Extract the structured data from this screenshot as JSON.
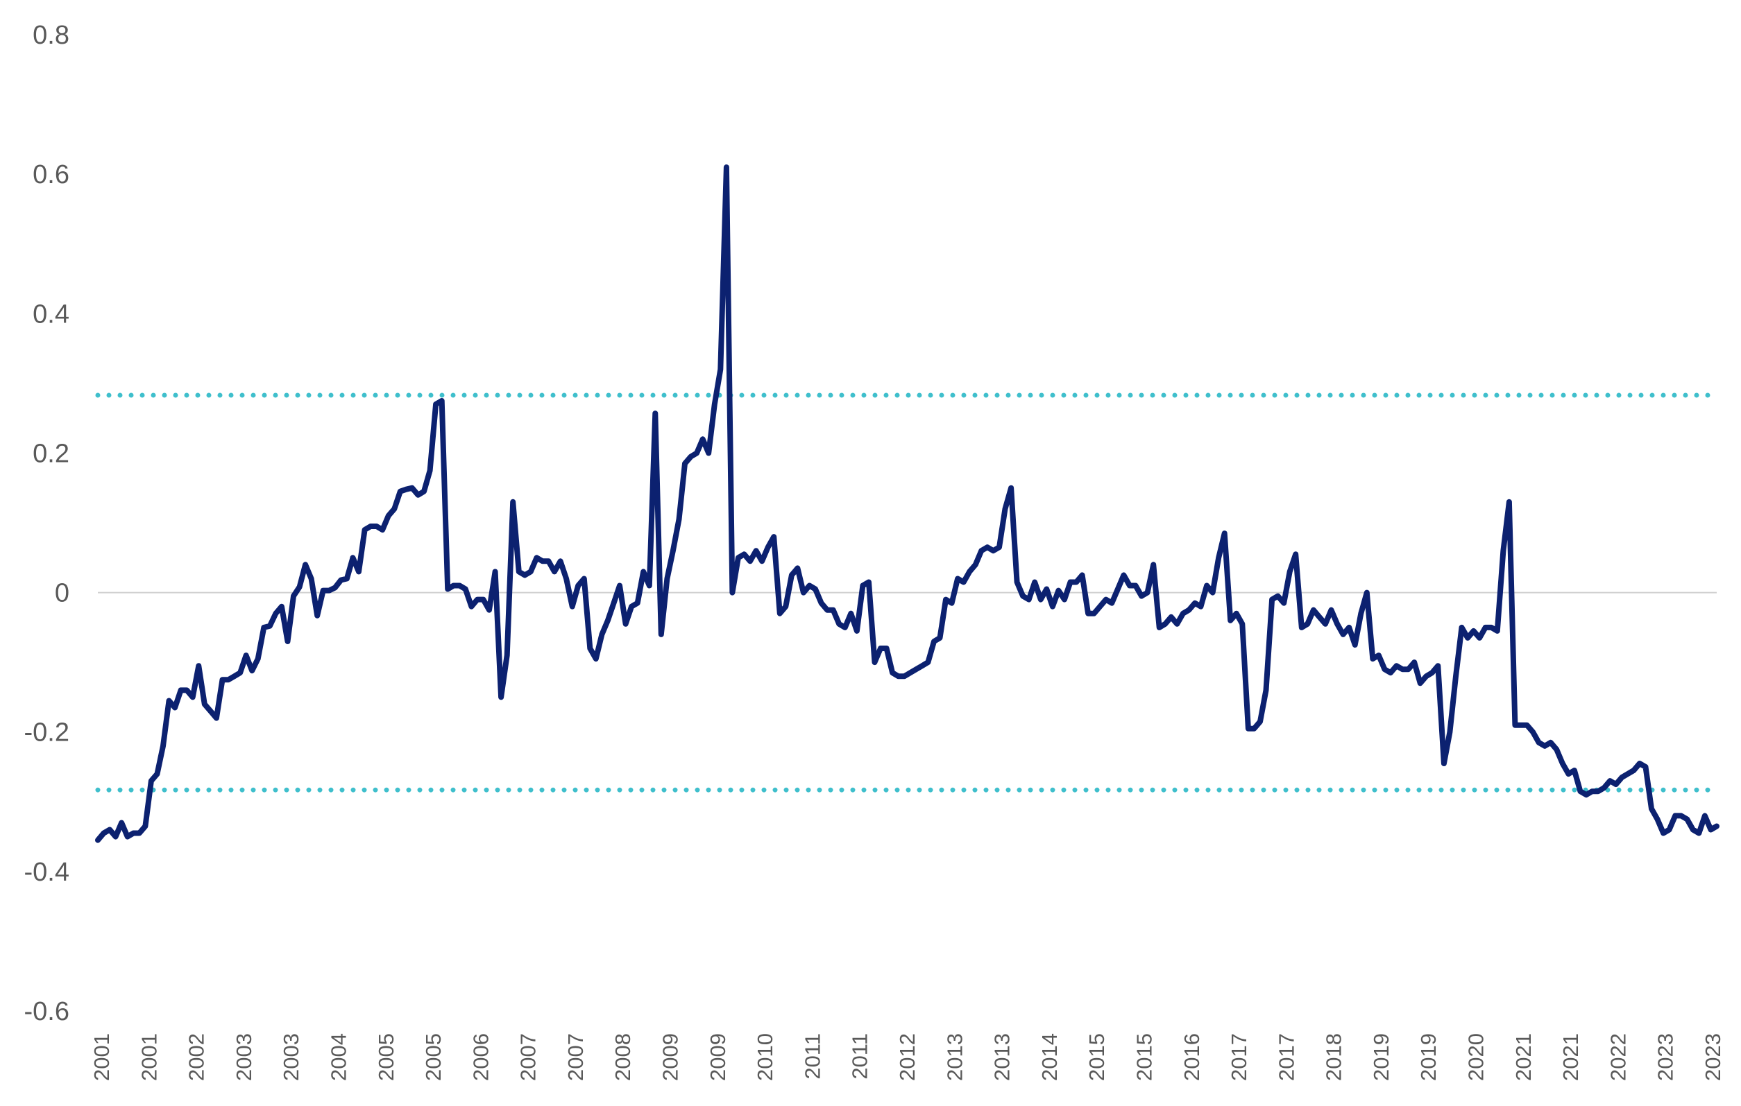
{
  "chart_data": {
    "type": "line",
    "title": "",
    "xlabel": "",
    "ylabel": "",
    "ylim": [
      -0.6,
      0.8
    ],
    "y_ticks": [
      "0.8",
      "0.6",
      "0.4",
      "0.2",
      "0",
      "-0.2",
      "-0.4",
      "-0.6"
    ],
    "y_tick_values": [
      0.8,
      0.6,
      0.4,
      0.2,
      0,
      -0.2,
      -0.4,
      -0.6
    ],
    "x_tick_labels": [
      "2001",
      "2001",
      "2002",
      "2003",
      "2003",
      "2004",
      "2005",
      "2005",
      "2006",
      "2007",
      "2007",
      "2008",
      "2009",
      "2009",
      "2010",
      "2011",
      "2011",
      "2012",
      "2013",
      "2013",
      "2014",
      "2015",
      "2015",
      "2016",
      "2017",
      "2017",
      "2018",
      "2019",
      "2019",
      "2020",
      "2021",
      "2021",
      "2022",
      "2023",
      "2023"
    ],
    "grid": false,
    "zero_line": true,
    "reference_lines": [
      0.283,
      -0.283
    ],
    "colors": {
      "series": "#0c2170",
      "reference": "#3fbfcc",
      "zero_line": "#d0d0d0",
      "tick_text": "#595959"
    },
    "series": [
      {
        "values": [
          -0.355,
          -0.345,
          -0.34,
          -0.35,
          -0.33,
          -0.35,
          -0.345,
          -0.345,
          -0.335,
          -0.27,
          -0.26,
          -0.22,
          -0.155,
          -0.165,
          -0.14,
          -0.14,
          -0.15,
          -0.105,
          -0.16,
          -0.17,
          -0.18,
          -0.125,
          -0.125,
          -0.12,
          -0.115,
          -0.09,
          -0.112,
          -0.095,
          -0.05,
          -0.048,
          -0.03,
          -0.02,
          -0.07,
          -0.005,
          0.008,
          0.04,
          0.02,
          -0.033,
          0.003,
          0.003,
          0.007,
          0.018,
          0.02,
          0.05,
          0.03,
          0.09,
          0.095,
          0.095,
          0.09,
          0.11,
          0.12,
          0.145,
          0.148,
          0.15,
          0.14,
          0.145,
          0.175,
          0.27,
          0.275,
          0.005,
          0.01,
          0.01,
          0.005,
          -0.02,
          -0.01,
          -0.01,
          -0.025,
          0.03,
          -0.15,
          -0.09,
          0.13,
          0.03,
          0.025,
          0.03,
          0.05,
          0.045,
          0.045,
          0.03,
          0.045,
          0.02,
          -0.02,
          0.01,
          0.02,
          -0.08,
          -0.095,
          -0.06,
          -0.04,
          -0.015,
          0.01,
          -0.045,
          -0.02,
          -0.015,
          0.03,
          0.01,
          0.257,
          -0.06,
          0.02,
          0.06,
          0.105,
          0.185,
          0.195,
          0.2,
          0.22,
          0.2,
          0.27,
          0.32,
          0.61,
          0.0,
          0.05,
          0.055,
          0.045,
          0.06,
          0.045,
          0.065,
          0.08,
          -0.03,
          -0.02,
          0.025,
          0.035,
          0.0,
          0.01,
          0.005,
          -0.015,
          -0.025,
          -0.025,
          -0.045,
          -0.05,
          -0.03,
          -0.055,
          0.01,
          0.015,
          -0.1,
          -0.08,
          -0.08,
          -0.115,
          -0.12,
          -0.12,
          -0.115,
          -0.11,
          -0.105,
          -0.1,
          -0.07,
          -0.065,
          -0.01,
          -0.015,
          0.02,
          0.015,
          0.03,
          0.04,
          0.06,
          0.065,
          0.06,
          0.065,
          0.12,
          0.15,
          0.015,
          -0.005,
          -0.01,
          0.015,
          -0.01,
          0.005,
          -0.02,
          0.003,
          -0.01,
          0.015,
          0.015,
          0.025,
          -0.03,
          -0.03,
          -0.02,
          -0.01,
          -0.015,
          0.005,
          0.025,
          0.01,
          0.01,
          -0.005,
          0.0,
          0.04,
          -0.05,
          -0.045,
          -0.035,
          -0.045,
          -0.03,
          -0.025,
          -0.015,
          -0.02,
          0.01,
          0.0,
          0.05,
          0.085,
          -0.04,
          -0.03,
          -0.045,
          -0.195,
          -0.195,
          -0.185,
          -0.14,
          -0.01,
          -0.005,
          -0.015,
          0.03,
          0.055,
          -0.05,
          -0.045,
          -0.025,
          -0.035,
          -0.045,
          -0.025,
          -0.045,
          -0.06,
          -0.05,
          -0.075,
          -0.03,
          0.0,
          -0.095,
          -0.09,
          -0.11,
          -0.115,
          -0.105,
          -0.11,
          -0.11,
          -0.1,
          -0.13,
          -0.12,
          -0.115,
          -0.105,
          -0.245,
          -0.2,
          -0.12,
          -0.05,
          -0.065,
          -0.055,
          -0.065,
          -0.05,
          -0.05,
          -0.055,
          0.06,
          0.13,
          -0.19,
          -0.19,
          -0.19,
          -0.2,
          -0.215,
          -0.22,
          -0.215,
          -0.225,
          -0.245,
          -0.26,
          -0.255,
          -0.285,
          -0.29,
          -0.285,
          -0.285,
          -0.28,
          -0.27,
          -0.275,
          -0.265,
          -0.26,
          -0.255,
          -0.245,
          -0.25,
          -0.31,
          -0.325,
          -0.345,
          -0.34,
          -0.32,
          -0.32,
          -0.325,
          -0.34,
          -0.345,
          -0.32,
          -0.34,
          -0.335
        ]
      }
    ]
  }
}
